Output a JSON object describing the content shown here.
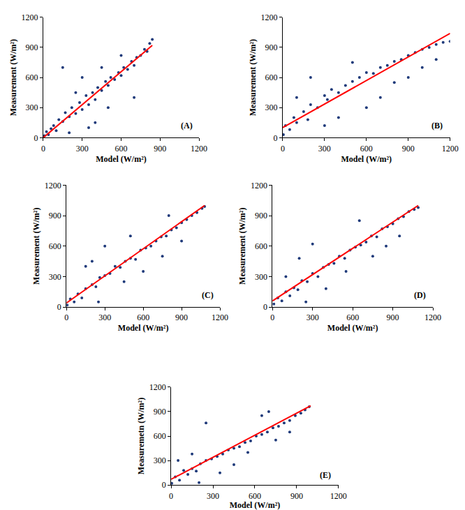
{
  "chart_data": [
    {
      "type": "scatter",
      "annotation": "(A)",
      "x_label": "Model (W/m²)",
      "y_label": "Measurement (W/m²)",
      "xlim": [
        0,
        1200
      ],
      "ylim": [
        0,
        1200
      ],
      "xticks": [
        0,
        300,
        600,
        900,
        1200
      ],
      "yticks": [
        0,
        300,
        600,
        900,
        1200
      ],
      "grid": false,
      "series": [
        {
          "type": "scatter",
          "color": "#1f3a7a",
          "marker": "circle",
          "x": [
            10,
            25,
            40,
            60,
            80,
            100,
            120,
            150,
            170,
            200,
            220,
            250,
            280,
            300,
            330,
            350,
            380,
            400,
            420,
            450,
            480,
            500,
            520,
            550,
            580,
            600,
            620,
            650,
            680,
            700,
            720,
            750,
            780,
            800,
            820,
            840,
            150,
            200,
            300,
            250,
            400,
            500,
            600,
            700,
            350,
            450
          ],
          "values": [
            20,
            60,
            30,
            90,
            120,
            70,
            180,
            160,
            250,
            210,
            300,
            240,
            350,
            280,
            420,
            330,
            450,
            380,
            500,
            470,
            560,
            520,
            600,
            580,
            650,
            620,
            700,
            680,
            760,
            720,
            800,
            820,
            880,
            860,
            940,
            980,
            700,
            50,
            600,
            450,
            150,
            300,
            820,
            400,
            100,
            700
          ]
        },
        {
          "type": "line",
          "color": "#ff0000",
          "line_style": "solid",
          "x": [
            0,
            840
          ],
          "values": [
            0,
            920
          ]
        }
      ]
    },
    {
      "type": "scatter",
      "annotation": "(B)",
      "x_label": "Model (W/m²)",
      "y_label": "Measurement (W/m²)",
      "xlim": [
        0,
        1200
      ],
      "ylim": [
        0,
        1200
      ],
      "xticks": [
        0,
        300,
        600,
        900,
        1200
      ],
      "yticks": [
        0,
        300,
        600,
        900,
        1200
      ],
      "grid": false,
      "series": [
        {
          "type": "scatter",
          "color": "#1f3a7a",
          "marker": "circle",
          "x": [
            5,
            20,
            50,
            80,
            100,
            150,
            180,
            200,
            250,
            300,
            320,
            350,
            400,
            450,
            500,
            550,
            600,
            650,
            700,
            750,
            800,
            850,
            900,
            950,
            1000,
            1050,
            1100,
            1150,
            1200,
            100,
            200,
            300,
            400,
            500,
            600,
            700,
            800,
            900,
            1000,
            1100
          ],
          "values": [
            30,
            120,
            80,
            200,
            150,
            260,
            180,
            330,
            300,
            420,
            380,
            480,
            450,
            520,
            560,
            600,
            650,
            640,
            700,
            720,
            760,
            780,
            820,
            850,
            880,
            900,
            930,
            950,
            960,
            400,
            600,
            120,
            200,
            750,
            300,
            400,
            550,
            600,
            700,
            780
          ]
        },
        {
          "type": "line",
          "color": "#ff0000",
          "line_style": "solid",
          "x": [
            0,
            1200
          ],
          "values": [
            100,
            1040
          ]
        }
      ]
    },
    {
      "type": "scatter",
      "annotation": "(C)",
      "x_label": "Model (W/m²)",
      "y_label": "Measurement (W/m²)",
      "xlim": [
        0,
        1200
      ],
      "ylim": [
        0,
        1200
      ],
      "xticks": [
        0,
        300,
        600,
        900,
        1200
      ],
      "yticks": [
        0,
        300,
        600,
        900,
        1200
      ],
      "grid": false,
      "series": [
        {
          "type": "scatter",
          "color": "#1f3a7a",
          "marker": "circle",
          "x": [
            5,
            30,
            60,
            90,
            120,
            150,
            200,
            230,
            260,
            300,
            340,
            380,
            420,
            460,
            500,
            540,
            580,
            620,
            660,
            700,
            740,
            780,
            820,
            860,
            900,
            940,
            980,
            1020,
            1060,
            1080,
            150,
            300,
            450,
            600,
            750,
            900,
            250,
            500,
            200,
            800
          ],
          "values": [
            20,
            80,
            50,
            130,
            90,
            180,
            220,
            200,
            290,
            310,
            330,
            400,
            390,
            450,
            480,
            470,
            560,
            580,
            600,
            650,
            690,
            700,
            760,
            780,
            830,
            860,
            900,
            930,
            970,
            990,
            400,
            600,
            250,
            350,
            500,
            650,
            50,
            700,
            450,
            900
          ]
        },
        {
          "type": "line",
          "color": "#ff0000",
          "line_style": "solid",
          "x": [
            0,
            1080
          ],
          "values": [
            40,
            1000
          ]
        }
      ]
    },
    {
      "type": "scatter",
      "annotation": "(D)",
      "x_label": "Model (W/m²)",
      "y_label": "Measurement (W/m²)",
      "xlim": [
        0,
        1200
      ],
      "ylim": [
        0,
        1200
      ],
      "xticks": [
        0,
        300,
        600,
        900,
        1200
      ],
      "yticks": [
        0,
        300,
        600,
        900,
        1200
      ],
      "grid": false,
      "series": [
        {
          "type": "scatter",
          "color": "#1f3a7a",
          "marker": "circle",
          "x": [
            10,
            40,
            70,
            100,
            130,
            160,
            190,
            220,
            260,
            300,
            340,
            380,
            420,
            460,
            500,
            540,
            580,
            620,
            660,
            700,
            740,
            780,
            820,
            860,
            900,
            940,
            980,
            1020,
            1060,
            1090,
            100,
            200,
            300,
            400,
            550,
            650,
            750,
            850,
            950,
            250
          ],
          "values": [
            30,
            90,
            60,
            150,
            110,
            190,
            170,
            260,
            250,
            330,
            300,
            390,
            420,
            430,
            500,
            480,
            560,
            590,
            610,
            640,
            700,
            690,
            770,
            790,
            820,
            870,
            890,
            940,
            960,
            980,
            300,
            480,
            620,
            180,
            350,
            850,
            500,
            600,
            700,
            50
          ]
        },
        {
          "type": "line",
          "color": "#ff0000",
          "line_style": "solid",
          "x": [
            0,
            1090
          ],
          "values": [
            60,
            1000
          ]
        }
      ]
    },
    {
      "type": "scatter",
      "annotation": "(E)",
      "x_label": "Model (W/m²)",
      "y_label": "Measuremetn (W/m²)",
      "xlim": [
        0,
        1200
      ],
      "ylim": [
        0,
        1200
      ],
      "xticks": [
        0,
        300,
        600,
        900,
        1200
      ],
      "yticks": [
        0,
        300,
        600,
        900,
        1200
      ],
      "grid": false,
      "series": [
        {
          "type": "scatter",
          "color": "#1f3a7a",
          "marker": "circle",
          "x": [
            5,
            30,
            60,
            90,
            120,
            150,
            180,
            210,
            250,
            290,
            330,
            370,
            410,
            450,
            490,
            530,
            570,
            610,
            650,
            690,
            730,
            770,
            810,
            850,
            890,
            930,
            960,
            990,
            50,
            150,
            250,
            350,
            450,
            550,
            650,
            750,
            850,
            200,
            700
          ],
          "values": [
            20,
            100,
            60,
            180,
            130,
            200,
            170,
            260,
            300,
            320,
            350,
            380,
            430,
            450,
            470,
            520,
            540,
            600,
            620,
            650,
            700,
            720,
            760,
            790,
            850,
            880,
            920,
            960,
            300,
            380,
            760,
            150,
            250,
            400,
            850,
            550,
            650,
            30,
            900
          ]
        },
        {
          "type": "line",
          "color": "#ff0000",
          "line_style": "solid",
          "x": [
            0,
            1000
          ],
          "values": [
            70,
            970
          ]
        }
      ]
    }
  ]
}
